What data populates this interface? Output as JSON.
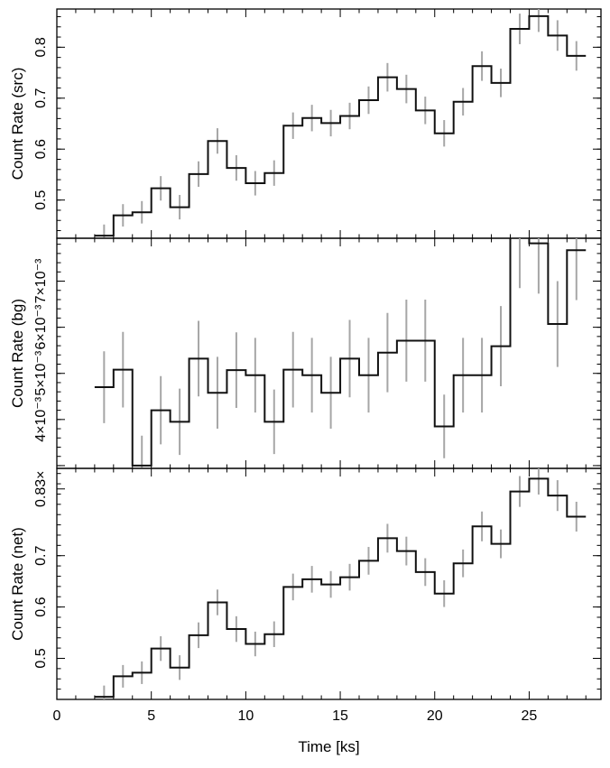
{
  "chart_data": [
    {
      "type": "line",
      "drawstyle": "steps",
      "ylabel": "Count Rate (src)",
      "xlim": [
        0,
        28.8
      ],
      "ylim": [
        0.425,
        0.875
      ],
      "ytick_values": [
        0.5,
        0.6,
        0.7,
        0.8
      ],
      "ytick_labels": [
        "0.5",
        "0.6",
        "0.7",
        "0.8"
      ],
      "bin_width": 1.0,
      "x": [
        2.5,
        3.5,
        4.5,
        5.5,
        6.5,
        7.5,
        8.5,
        9.5,
        10.5,
        11.5,
        12.5,
        13.5,
        14.5,
        15.5,
        16.5,
        17.5,
        18.5,
        19.5,
        20.5,
        21.5,
        22.5,
        23.5,
        24.5,
        25.5,
        26.5,
        27.5
      ],
      "y": [
        0.43,
        0.47,
        0.476,
        0.523,
        0.486,
        0.551,
        0.616,
        0.563,
        0.533,
        0.553,
        0.646,
        0.661,
        0.651,
        0.665,
        0.696,
        0.741,
        0.718,
        0.676,
        0.631,
        0.693,
        0.763,
        0.73,
        0.836,
        0.861,
        0.823,
        0.783
      ],
      "yerr": [
        0.022,
        0.022,
        0.022,
        0.024,
        0.024,
        0.025,
        0.025,
        0.025,
        0.024,
        0.025,
        0.026,
        0.026,
        0.026,
        0.026,
        0.027,
        0.028,
        0.028,
        0.027,
        0.026,
        0.027,
        0.029,
        0.028,
        0.03,
        0.031,
        0.03,
        0.029
      ]
    },
    {
      "type": "line",
      "drawstyle": "steps",
      "ylabel": "Count Rate (bg)",
      "xlim": [
        0,
        28.8
      ],
      "ylim": [
        0.00294,
        0.00793
      ],
      "ytick_values": [
        0.003,
        0.004,
        0.005,
        0.006,
        0.007
      ],
      "ytick_labels": [
        "",
        "4×10⁻³",
        "5×10⁻³",
        "6×10⁻³",
        "7×10⁻³"
      ],
      "bin_width": 1.0,
      "x": [
        2.5,
        3.5,
        4.5,
        5.5,
        6.5,
        7.5,
        8.5,
        9.5,
        10.5,
        11.5,
        12.5,
        13.5,
        14.5,
        15.5,
        16.5,
        17.5,
        18.5,
        19.5,
        20.5,
        21.5,
        22.5,
        23.5,
        24.5,
        25.5,
        26.5,
        27.5
      ],
      "y": [
        0.0047,
        0.00508,
        0.003,
        0.0042,
        0.00395,
        0.00532,
        0.00458,
        0.00507,
        0.00496,
        0.00395,
        0.00508,
        0.00496,
        0.00458,
        0.00532,
        0.00496,
        0.00545,
        0.00571,
        0.00571,
        0.00385,
        0.00496,
        0.00496,
        0.00559,
        0.00795,
        0.00782,
        0.00607,
        0.00767
      ],
      "yerr": [
        0.00078,
        0.00082,
        0.00065,
        0.00074,
        0.00072,
        0.00082,
        0.00078,
        0.00082,
        0.00081,
        0.0007,
        0.00082,
        0.00081,
        0.00078,
        0.00084,
        0.00081,
        0.00086,
        0.00089,
        0.00089,
        0.00069,
        0.00081,
        0.00081,
        0.00087,
        0.0011,
        0.00109,
        0.00093,
        0.00108
      ]
    },
    {
      "type": "line",
      "drawstyle": "steps",
      "ylabel": "Count Rate (net)",
      "xlabel": "Time [ks]",
      "xlim": [
        0,
        28.8
      ],
      "ylim": [
        0.42,
        0.87
      ],
      "xtick_values": [
        0,
        5,
        10,
        15,
        20,
        25
      ],
      "xtick_labels": [
        "0",
        "5",
        "10",
        "15",
        "20",
        "25"
      ],
      "ytick_values": [
        0.5,
        0.6,
        0.7,
        0.83
      ],
      "ytick_labels": [
        "0.5",
        "0.6",
        "0.7",
        "0.83×"
      ],
      "bin_width": 1.0,
      "x": [
        2.5,
        3.5,
        4.5,
        5.5,
        6.5,
        7.5,
        8.5,
        9.5,
        10.5,
        11.5,
        12.5,
        13.5,
        14.5,
        15.5,
        16.5,
        17.5,
        18.5,
        19.5,
        20.5,
        21.5,
        22.5,
        23.5,
        24.5,
        25.5,
        26.5,
        27.5
      ],
      "y": [
        0.425,
        0.465,
        0.472,
        0.519,
        0.482,
        0.545,
        0.609,
        0.557,
        0.528,
        0.547,
        0.639,
        0.654,
        0.644,
        0.658,
        0.69,
        0.734,
        0.709,
        0.668,
        0.626,
        0.685,
        0.757,
        0.723,
        0.825,
        0.85,
        0.817,
        0.776
      ],
      "yerr": [
        0.022,
        0.022,
        0.022,
        0.024,
        0.024,
        0.025,
        0.025,
        0.025,
        0.024,
        0.025,
        0.026,
        0.026,
        0.026,
        0.026,
        0.027,
        0.028,
        0.028,
        0.027,
        0.026,
        0.027,
        0.029,
        0.028,
        0.03,
        0.031,
        0.03,
        0.029
      ]
    }
  ]
}
